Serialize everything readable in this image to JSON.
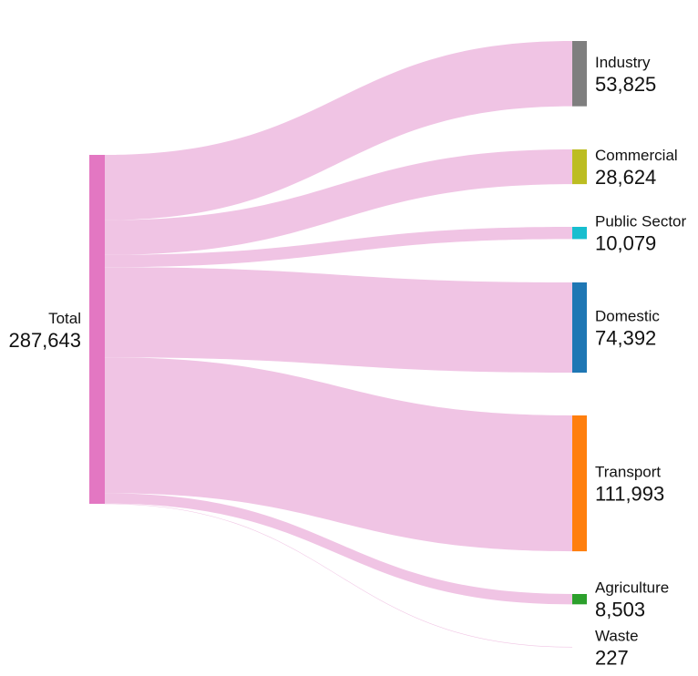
{
  "chart_data": {
    "type": "sankey",
    "source": {
      "label": "Total",
      "value": "287,643",
      "amount": 287643,
      "color": "#e377c2"
    },
    "link_color": "#f0c4e4",
    "targets": [
      {
        "label": "Industry",
        "value": "53,825",
        "amount": 53825,
        "color": "#7f7f7f"
      },
      {
        "label": "Commercial",
        "value": "28,624",
        "amount": 28624,
        "color": "#bcbd22"
      },
      {
        "label": "Public Sector",
        "value": "10,079",
        "amount": 10079,
        "color": "#17becf"
      },
      {
        "label": "Domestic",
        "value": "74,392",
        "amount": 74392,
        "color": "#1f77b4"
      },
      {
        "label": "Transport",
        "value": "111,993",
        "amount": 111993,
        "color": "#ff7f0e"
      },
      {
        "label": "Agriculture",
        "value": "8,503",
        "amount": 8503,
        "color": "#2ca02c"
      },
      {
        "label": "Waste",
        "value": "227",
        "amount": 227,
        "color": "#d62728"
      }
    ]
  }
}
